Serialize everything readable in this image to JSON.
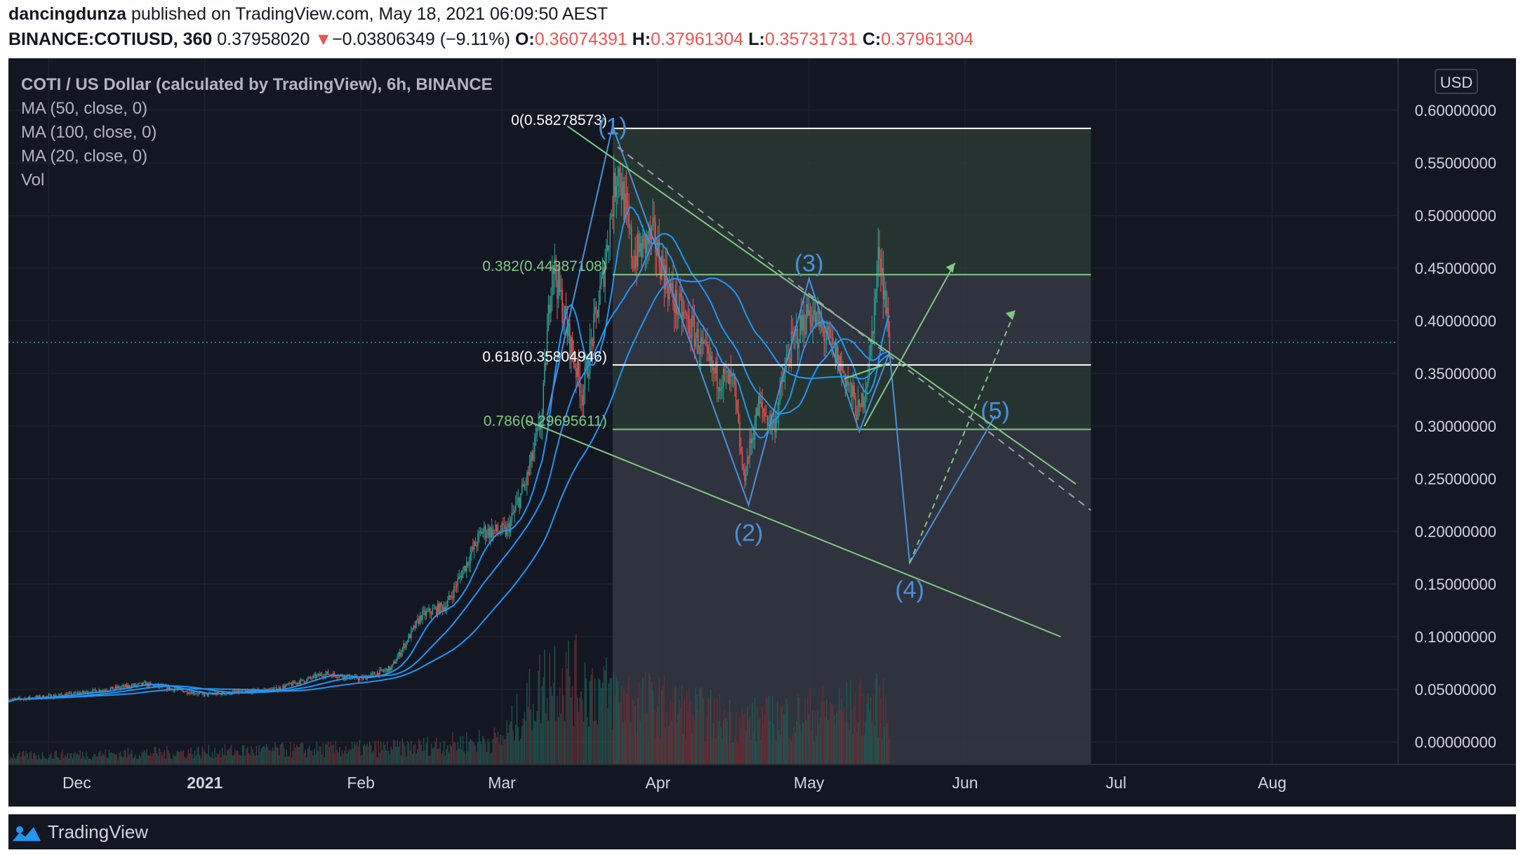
{
  "header": {
    "author": "dancingdunza",
    "published": "published on TradingView.com, May 18, 2021 06:09:50 AEST",
    "symbol": "BINANCE:COTIUSD, 360",
    "last": "0.37958020",
    "arrow": "▼",
    "change": "−0.03806349 (−9.11%)",
    "o_label": "O:",
    "o_val": "0.36074391",
    "h_label": "H:",
    "h_val": "0.37961304",
    "l_label": "L:",
    "l_val": "0.35731731",
    "c_label": "C:",
    "c_val": "0.37961304"
  },
  "legend": {
    "title": "COTI / US Dollar (calculated by TradingView), 6h, BINANCE",
    "ma50": "MA (50, close, 0)",
    "ma100": "MA (100, close, 0)",
    "ma20": "MA (20, close, 0)",
    "vol": "Vol"
  },
  "currency_button": "USD",
  "footer": {
    "logo": "TradingView"
  },
  "colors": {
    "background": "#131722",
    "up": "#26a69a",
    "down": "#ef5350",
    "ma": "#2196f3",
    "fib_green": "#81c784",
    "wave": "#4a90d9"
  },
  "chart_data": {
    "type": "candlestick",
    "ylim": [
      -0.02,
      0.62
    ],
    "y_ticks": [
      "0.60000000",
      "0.55000000",
      "0.50000000",
      "0.45000000",
      "0.40000000",
      "0.35000000",
      "0.30000000",
      "0.25000000",
      "0.20000000",
      "0.15000000",
      "0.10000000",
      "0.05000000",
      "0.00000000"
    ],
    "y_tick_values": [
      0.6,
      0.55,
      0.5,
      0.45,
      0.4,
      0.35,
      0.3,
      0.25,
      0.2,
      0.15,
      0.1,
      0.05,
      0.0
    ],
    "x_ticks": [
      {
        "label": "Dec",
        "date": "2020-12-01"
      },
      {
        "label": "2021",
        "date": "2021-01-01"
      },
      {
        "label": "Feb",
        "date": "2021-02-01"
      },
      {
        "label": "Mar",
        "date": "2021-03-01"
      },
      {
        "label": "Apr",
        "date": "2021-04-01"
      },
      {
        "label": "May",
        "date": "2021-05-01"
      },
      {
        "label": "Jun",
        "date": "2021-06-01"
      },
      {
        "label": "Jul",
        "date": "2021-07-01"
      },
      {
        "label": "Aug",
        "date": "2021-08-01"
      }
    ],
    "x_range": [
      "2020-11-23",
      "2021-08-26"
    ],
    "last_price": 0.37958,
    "fib_box": {
      "start": "2021-03-23",
      "end": "2021-06-26"
    },
    "fib_levels": [
      {
        "label": "0(0.58278573)",
        "value": 0.58278573,
        "color": "#ffffff"
      },
      {
        "label": "0.382(0.44387108)",
        "value": 0.44387108,
        "color": "#81c784"
      },
      {
        "label": "0.618(0.35804946)",
        "value": 0.35804946,
        "color": "#ffffff"
      },
      {
        "label": "0.786(0.29695611)",
        "value": 0.29695611,
        "color": "#81c784"
      }
    ],
    "price_path": [
      [
        "2020-11-23",
        0.04
      ],
      [
        "2020-12-05",
        0.045
      ],
      [
        "2020-12-20",
        0.055
      ],
      [
        "2021-01-01",
        0.045
      ],
      [
        "2021-01-15",
        0.05
      ],
      [
        "2021-01-25",
        0.065
      ],
      [
        "2021-02-01",
        0.06
      ],
      [
        "2021-02-07",
        0.07
      ],
      [
        "2021-02-13",
        0.12
      ],
      [
        "2021-02-18",
        0.13
      ],
      [
        "2021-02-25",
        0.2
      ],
      [
        "2021-03-02",
        0.2
      ],
      [
        "2021-03-06",
        0.25
      ],
      [
        "2021-03-09",
        0.31
      ],
      [
        "2021-03-11",
        0.46
      ],
      [
        "2021-03-14",
        0.39
      ],
      [
        "2021-03-17",
        0.33
      ],
      [
        "2021-03-21",
        0.44
      ],
      [
        "2021-03-24",
        0.55
      ],
      [
        "2021-03-27",
        0.46
      ],
      [
        "2021-03-31",
        0.48
      ],
      [
        "2021-04-04",
        0.42
      ],
      [
        "2021-04-08",
        0.39
      ],
      [
        "2021-04-12",
        0.35
      ],
      [
        "2021-04-16",
        0.34
      ],
      [
        "2021-04-18",
        0.25
      ],
      [
        "2021-04-21",
        0.32
      ],
      [
        "2021-04-24",
        0.3
      ],
      [
        "2021-04-27",
        0.37
      ],
      [
        "2021-05-01",
        0.41
      ],
      [
        "2021-05-05",
        0.38
      ],
      [
        "2021-05-08",
        0.35
      ],
      [
        "2021-05-11",
        0.31
      ],
      [
        "2021-05-13",
        0.36
      ],
      [
        "2021-05-15",
        0.47
      ],
      [
        "2021-05-17",
        0.38
      ]
    ],
    "volume_path": [
      [
        "2020-11-23",
        0.01
      ],
      [
        "2021-02-10",
        0.02
      ],
      [
        "2021-03-01",
        0.03
      ],
      [
        "2021-03-11",
        0.11
      ],
      [
        "2021-03-24",
        0.08
      ],
      [
        "2021-04-18",
        0.05
      ],
      [
        "2021-05-15",
        0.07
      ],
      [
        "2021-05-17",
        0.06
      ]
    ],
    "waves": [
      {
        "label": "(1)",
        "date": "2021-03-23",
        "value": 0.585
      },
      {
        "label": "(2)",
        "date": "2021-04-19",
        "value": 0.199
      },
      {
        "label": "(3)",
        "date": "2021-05-01",
        "value": 0.455
      },
      {
        "label": "(4)",
        "date": "2021-05-21",
        "value": 0.145
      },
      {
        "label": "(5)",
        "date": "2021-06-07",
        "value": 0.315
      }
    ]
  }
}
